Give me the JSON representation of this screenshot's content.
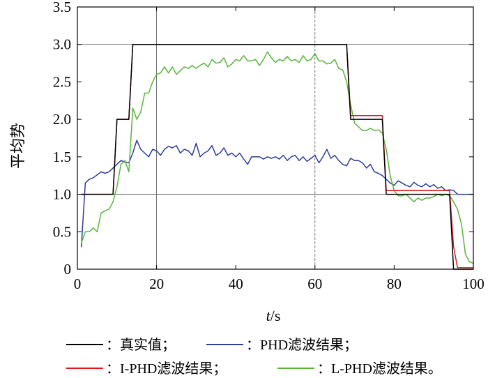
{
  "chart_data": {
    "type": "line",
    "xlabel_italic": "t",
    "xlabel_rest": "/s",
    "ylabel": "平均势",
    "xlim": [
      0,
      100
    ],
    "ylim": [
      0,
      3.5
    ],
    "x_ticks": [
      "0",
      "20",
      "40",
      "60",
      "80",
      "100"
    ],
    "y_ticks": [
      "0",
      "0.5",
      "1.0",
      "1.5",
      "2.0",
      "2.5",
      "3.0",
      "3.5"
    ],
    "grid": "vertical lines at x = 20 and x = 60; horizontal lines at y = 1 and y = 3",
    "legend_position": "bottom",
    "x": [
      1,
      2,
      3,
      4,
      5,
      6,
      7,
      8,
      9,
      10,
      11,
      12,
      13,
      14,
      15,
      16,
      17,
      18,
      19,
      20,
      21,
      22,
      23,
      24,
      25,
      26,
      27,
      28,
      29,
      30,
      31,
      32,
      33,
      34,
      35,
      36,
      37,
      38,
      39,
      40,
      41,
      42,
      43,
      44,
      45,
      46,
      47,
      48,
      49,
      50,
      51,
      52,
      53,
      54,
      55,
      56,
      57,
      58,
      59,
      60,
      61,
      62,
      63,
      64,
      65,
      66,
      67,
      68,
      69,
      70,
      71,
      72,
      73,
      74,
      75,
      76,
      77,
      78,
      79,
      80,
      81,
      82,
      83,
      84,
      85,
      86,
      87,
      88,
      89,
      90,
      91,
      92,
      93,
      94,
      95,
      96,
      97,
      98,
      99,
      100
    ],
    "series": [
      {
        "name": "：真实值；",
        "color": "#000000",
        "values": [
          1,
          1,
          1,
          1,
          1,
          1,
          1,
          1,
          1,
          2,
          2,
          2,
          2,
          3,
          3,
          3,
          3,
          3,
          3,
          3,
          3,
          3,
          3,
          3,
          3,
          3,
          3,
          3,
          3,
          3,
          3,
          3,
          3,
          3,
          3,
          3,
          3,
          3,
          3,
          3,
          3,
          3,
          3,
          3,
          3,
          3,
          3,
          3,
          3,
          3,
          3,
          3,
          3,
          3,
          3,
          3,
          3,
          3,
          3,
          3,
          3,
          3,
          3,
          3,
          3,
          3,
          3,
          3,
          2,
          2,
          2,
          2,
          2,
          2,
          2,
          2,
          2,
          1,
          1,
          1,
          1,
          1,
          1,
          1,
          1,
          1,
          1,
          1,
          1,
          1,
          1,
          1,
          1,
          1,
          0,
          0,
          0,
          0,
          0,
          0
        ]
      },
      {
        "name": "：PHD滤波结果；",
        "color": "#2d3d9c",
        "values": [
          0.3,
          1.15,
          1.2,
          1.22,
          1.26,
          1.3,
          1.28,
          1.3,
          1.35,
          1.4,
          1.45,
          1.43,
          1.42,
          1.55,
          1.72,
          1.6,
          1.55,
          1.5,
          1.6,
          1.58,
          1.52,
          1.6,
          1.64,
          1.62,
          1.65,
          1.55,
          1.6,
          1.58,
          1.52,
          1.68,
          1.5,
          1.55,
          1.58,
          1.65,
          1.52,
          1.55,
          1.62,
          1.52,
          1.55,
          1.5,
          1.55,
          1.47,
          1.4,
          1.5,
          1.5,
          1.5,
          1.47,
          1.5,
          1.48,
          1.5,
          1.47,
          1.52,
          1.45,
          1.5,
          1.52,
          1.45,
          1.5,
          1.44,
          1.48,
          1.52,
          1.42,
          1.5,
          1.6,
          1.48,
          1.52,
          1.45,
          1.4,
          1.38,
          1.48,
          1.45,
          1.45,
          1.42,
          1.35,
          1.4,
          1.3,
          1.28,
          1.25,
          1.2,
          1.15,
          1.12,
          1.18,
          1.15,
          1.12,
          1.1,
          1.16,
          1.12,
          1.1,
          1.14,
          1.1,
          1.13,
          1.08,
          1.1,
          1.05,
          1.06,
          1.05,
          1.0,
          1.0,
          1.0,
          1.0,
          1.0
        ]
      },
      {
        "name": "：I-PHD滤波结果；",
        "color": "#e0171c",
        "values": [
          1,
          1,
          1,
          1,
          1,
          1,
          1,
          1,
          1,
          2,
          2,
          2,
          2,
          3,
          3,
          3,
          3,
          3,
          3,
          3,
          3,
          3,
          3,
          3,
          3,
          3,
          3,
          3,
          3,
          3,
          3,
          3,
          3,
          3,
          3,
          3,
          3,
          3,
          3,
          3,
          3,
          3,
          3,
          3,
          3,
          3,
          3,
          3,
          3,
          3,
          3,
          3,
          3,
          3,
          3,
          3,
          3,
          3,
          3,
          3,
          3,
          3,
          3,
          3,
          3,
          3,
          3,
          3,
          2.05,
          2.05,
          2.05,
          2.05,
          2.05,
          2.05,
          2.05,
          2.05,
          2.05,
          1.05,
          1.05,
          1.05,
          1.05,
          1.05,
          1.05,
          1.05,
          1.05,
          1.05,
          1.05,
          1.05,
          1.05,
          1.05,
          1.05,
          1.05,
          1.05,
          1.05,
          0.3,
          0.02,
          0.02,
          0.02,
          0.02,
          0.02
        ]
      },
      {
        "name": "：L-PHD滤波结果。",
        "color": "#5ab43c",
        "values": [
          0.35,
          0.5,
          0.5,
          0.55,
          0.5,
          0.75,
          0.78,
          0.8,
          0.9,
          1.1,
          1.4,
          1.45,
          1.3,
          2.15,
          2.0,
          2.1,
          2.35,
          2.35,
          2.5,
          2.6,
          2.62,
          2.7,
          2.62,
          2.7,
          2.6,
          2.65,
          2.7,
          2.68,
          2.72,
          2.68,
          2.72,
          2.75,
          2.7,
          2.8,
          2.75,
          2.76,
          2.82,
          2.7,
          2.74,
          2.8,
          2.78,
          2.85,
          2.78,
          2.78,
          2.8,
          2.72,
          2.8,
          2.9,
          2.82,
          2.76,
          2.8,
          2.78,
          2.84,
          2.78,
          2.8,
          2.76,
          2.85,
          2.78,
          2.8,
          2.88,
          2.78,
          2.78,
          2.74,
          2.75,
          2.8,
          2.68,
          2.66,
          2.5,
          2.2,
          1.95,
          1.9,
          1.85,
          1.85,
          1.88,
          1.85,
          1.86,
          1.82,
          1.6,
          1.25,
          1.05,
          0.98,
          0.98,
          1.0,
          0.95,
          0.9,
          0.95,
          0.92,
          0.95,
          0.95,
          0.97,
          1.0,
          0.98,
          1.0,
          0.98,
          0.9,
          0.8,
          0.6,
          0.2,
          0.1,
          0.08
        ]
      }
    ]
  }
}
